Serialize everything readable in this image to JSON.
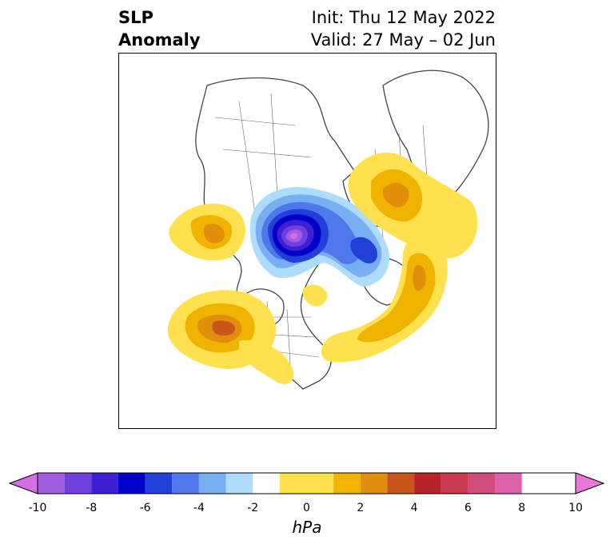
{
  "title": {
    "line1": "SLP",
    "line2": "Anomaly",
    "init": "Init: Thu 12 May 2022",
    "valid": "Valid: 27 May – 02 Jun"
  },
  "colorbar": {
    "unit": "hPa",
    "ticks": [
      "-10",
      "-8",
      "-6",
      "-4",
      "-2",
      "0",
      "2",
      "4",
      "6",
      "8",
      "10"
    ],
    "colors": [
      "#d56ee6",
      "#a35de0",
      "#7040dc",
      "#3f1fd2",
      "#0000c8",
      "#2040d8",
      "#4f79ea",
      "#78aef2",
      "#aedcfc",
      "#ffffff",
      "#ffe14f",
      "#f0b400",
      "#e08e0c",
      "#c8561a",
      "#b42424",
      "#c83a4e",
      "#d04c7c",
      "#dc60ac",
      "#ea76d6"
    ]
  }
}
